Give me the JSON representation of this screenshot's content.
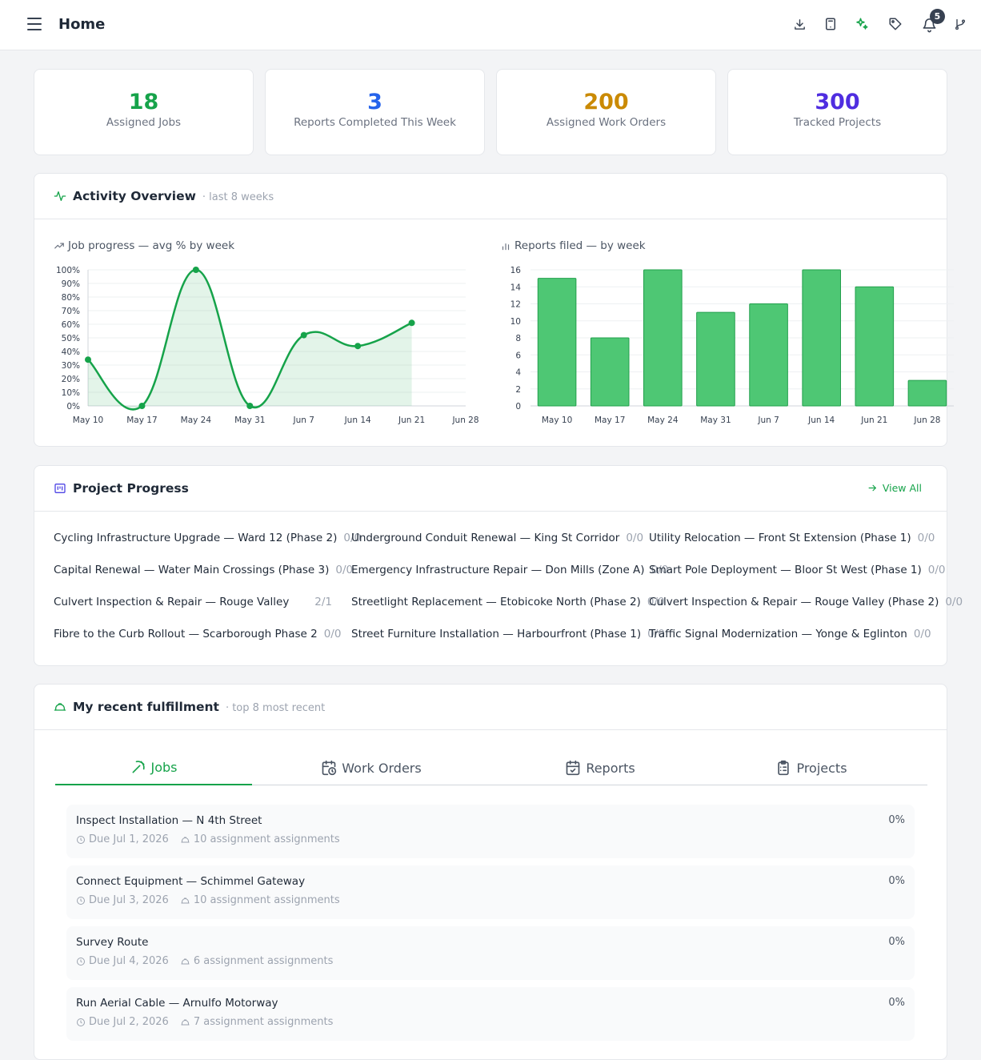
{
  "header": {
    "title": "Home",
    "notification_count": "5"
  },
  "icons": {
    "menu": "hamburger-icon",
    "download": "download-icon",
    "device": "tablet-icon",
    "sparkle": "sparkle-icon",
    "tag": "tag-icon",
    "bell": "bell-icon",
    "branch": "git-branch-icon"
  },
  "colors": {
    "green": "#16a34a",
    "blue": "#2563eb",
    "amber": "#ca8a04",
    "purple": "#4f2de0"
  },
  "stats": [
    {
      "value": "18",
      "label": "Assigned Jobs"
    },
    {
      "value": "3",
      "label": "Reports Completed This Week"
    },
    {
      "value": "200",
      "label": "Assigned Work Orders"
    },
    {
      "value": "300",
      "label": "Tracked Projects"
    }
  ],
  "activity": {
    "title": "Activity Overview",
    "subtitle": "· last 8 weeks",
    "line_title": "Job progress — avg % by week",
    "bar_title": "Reports filed — by week"
  },
  "chart_data": [
    {
      "type": "area",
      "title": "Job progress — avg % by week",
      "categories": [
        "May 10",
        "May 17",
        "May 24",
        "May 31",
        "Jun 7",
        "Jun 14",
        "Jun 21",
        "Jun 28"
      ],
      "values": [
        34,
        0,
        100,
        0,
        52,
        44,
        61,
        null
      ],
      "ylim": [
        0,
        100
      ],
      "yticks": [
        "0%",
        "10%",
        "20%",
        "30%",
        "40%",
        "50%",
        "60%",
        "70%",
        "80%",
        "90%",
        "100%"
      ],
      "grid": true
    },
    {
      "type": "bar",
      "title": "Reports filed — by week",
      "categories": [
        "May 10",
        "May 17",
        "May 24",
        "May 31",
        "Jun 7",
        "Jun 14",
        "Jun 21",
        "Jun 28"
      ],
      "values": [
        15,
        8,
        16,
        11,
        12,
        16,
        14,
        3
      ],
      "ylim": [
        0,
        16
      ],
      "yticks": [
        "0",
        "2",
        "4",
        "6",
        "8",
        "10",
        "12",
        "14",
        "16"
      ],
      "grid": true
    }
  ],
  "project_progress": {
    "title": "Project Progress",
    "view_all": "View All",
    "items": [
      {
        "name": "Cycling Infrastructure Upgrade — Ward 12 (Phase 2)",
        "count": "0/0"
      },
      {
        "name": "Underground Conduit Renewal — King St Corridor",
        "count": "0/0"
      },
      {
        "name": "Utility Relocation — Front St Extension (Phase 1)",
        "count": "0/0"
      },
      {
        "name": "Capital Renewal — Water Main Crossings (Phase 3)",
        "count": "0/0"
      },
      {
        "name": "Emergency Infrastructure Repair — Don Mills (Zone A)",
        "count": "0/0"
      },
      {
        "name": "Smart Pole Deployment — Bloor St West (Phase 1)",
        "count": "0/0"
      },
      {
        "name": "Culvert Inspection & Repair — Rouge Valley",
        "count": "2/1"
      },
      {
        "name": "Streetlight Replacement — Etobicoke North (Phase 2)",
        "count": "0/0"
      },
      {
        "name": "Culvert Inspection & Repair — Rouge Valley (Phase 2)",
        "count": "0/0"
      },
      {
        "name": "Fibre to the Curb Rollout — Scarborough Phase 2",
        "count": "0/0"
      },
      {
        "name": "Street Furniture Installation — Harbourfront (Phase 1)",
        "count": "0/0"
      },
      {
        "name": "Traffic Signal Modernization — Yonge & Eglinton",
        "count": "0/0"
      }
    ]
  },
  "fulfillment": {
    "title": "My recent fulfillment",
    "subtitle": "· top 8 most recent",
    "tabs": [
      {
        "label": "Jobs",
        "active": true
      },
      {
        "label": "Work Orders",
        "active": false
      },
      {
        "label": "Reports",
        "active": false
      },
      {
        "label": "Projects",
        "active": false
      }
    ],
    "jobs": [
      {
        "title": "Inspect Installation — N 4th Street",
        "due": "Due Jul 1, 2026",
        "assignments": "10 assignment assignments",
        "progress": "0%"
      },
      {
        "title": "Connect Equipment — Schimmel Gateway",
        "due": "Due Jul 3, 2026",
        "assignments": "10 assignment assignments",
        "progress": "0%"
      },
      {
        "title": "Survey Route",
        "due": "Due Jul 4, 2026",
        "assignments": "6 assignment assignments",
        "progress": "0%"
      },
      {
        "title": "Run Aerial Cable — Arnulfo Motorway",
        "due": "Due Jul 2, 2026",
        "assignments": "7 assignment assignments",
        "progress": "0%"
      }
    ]
  }
}
